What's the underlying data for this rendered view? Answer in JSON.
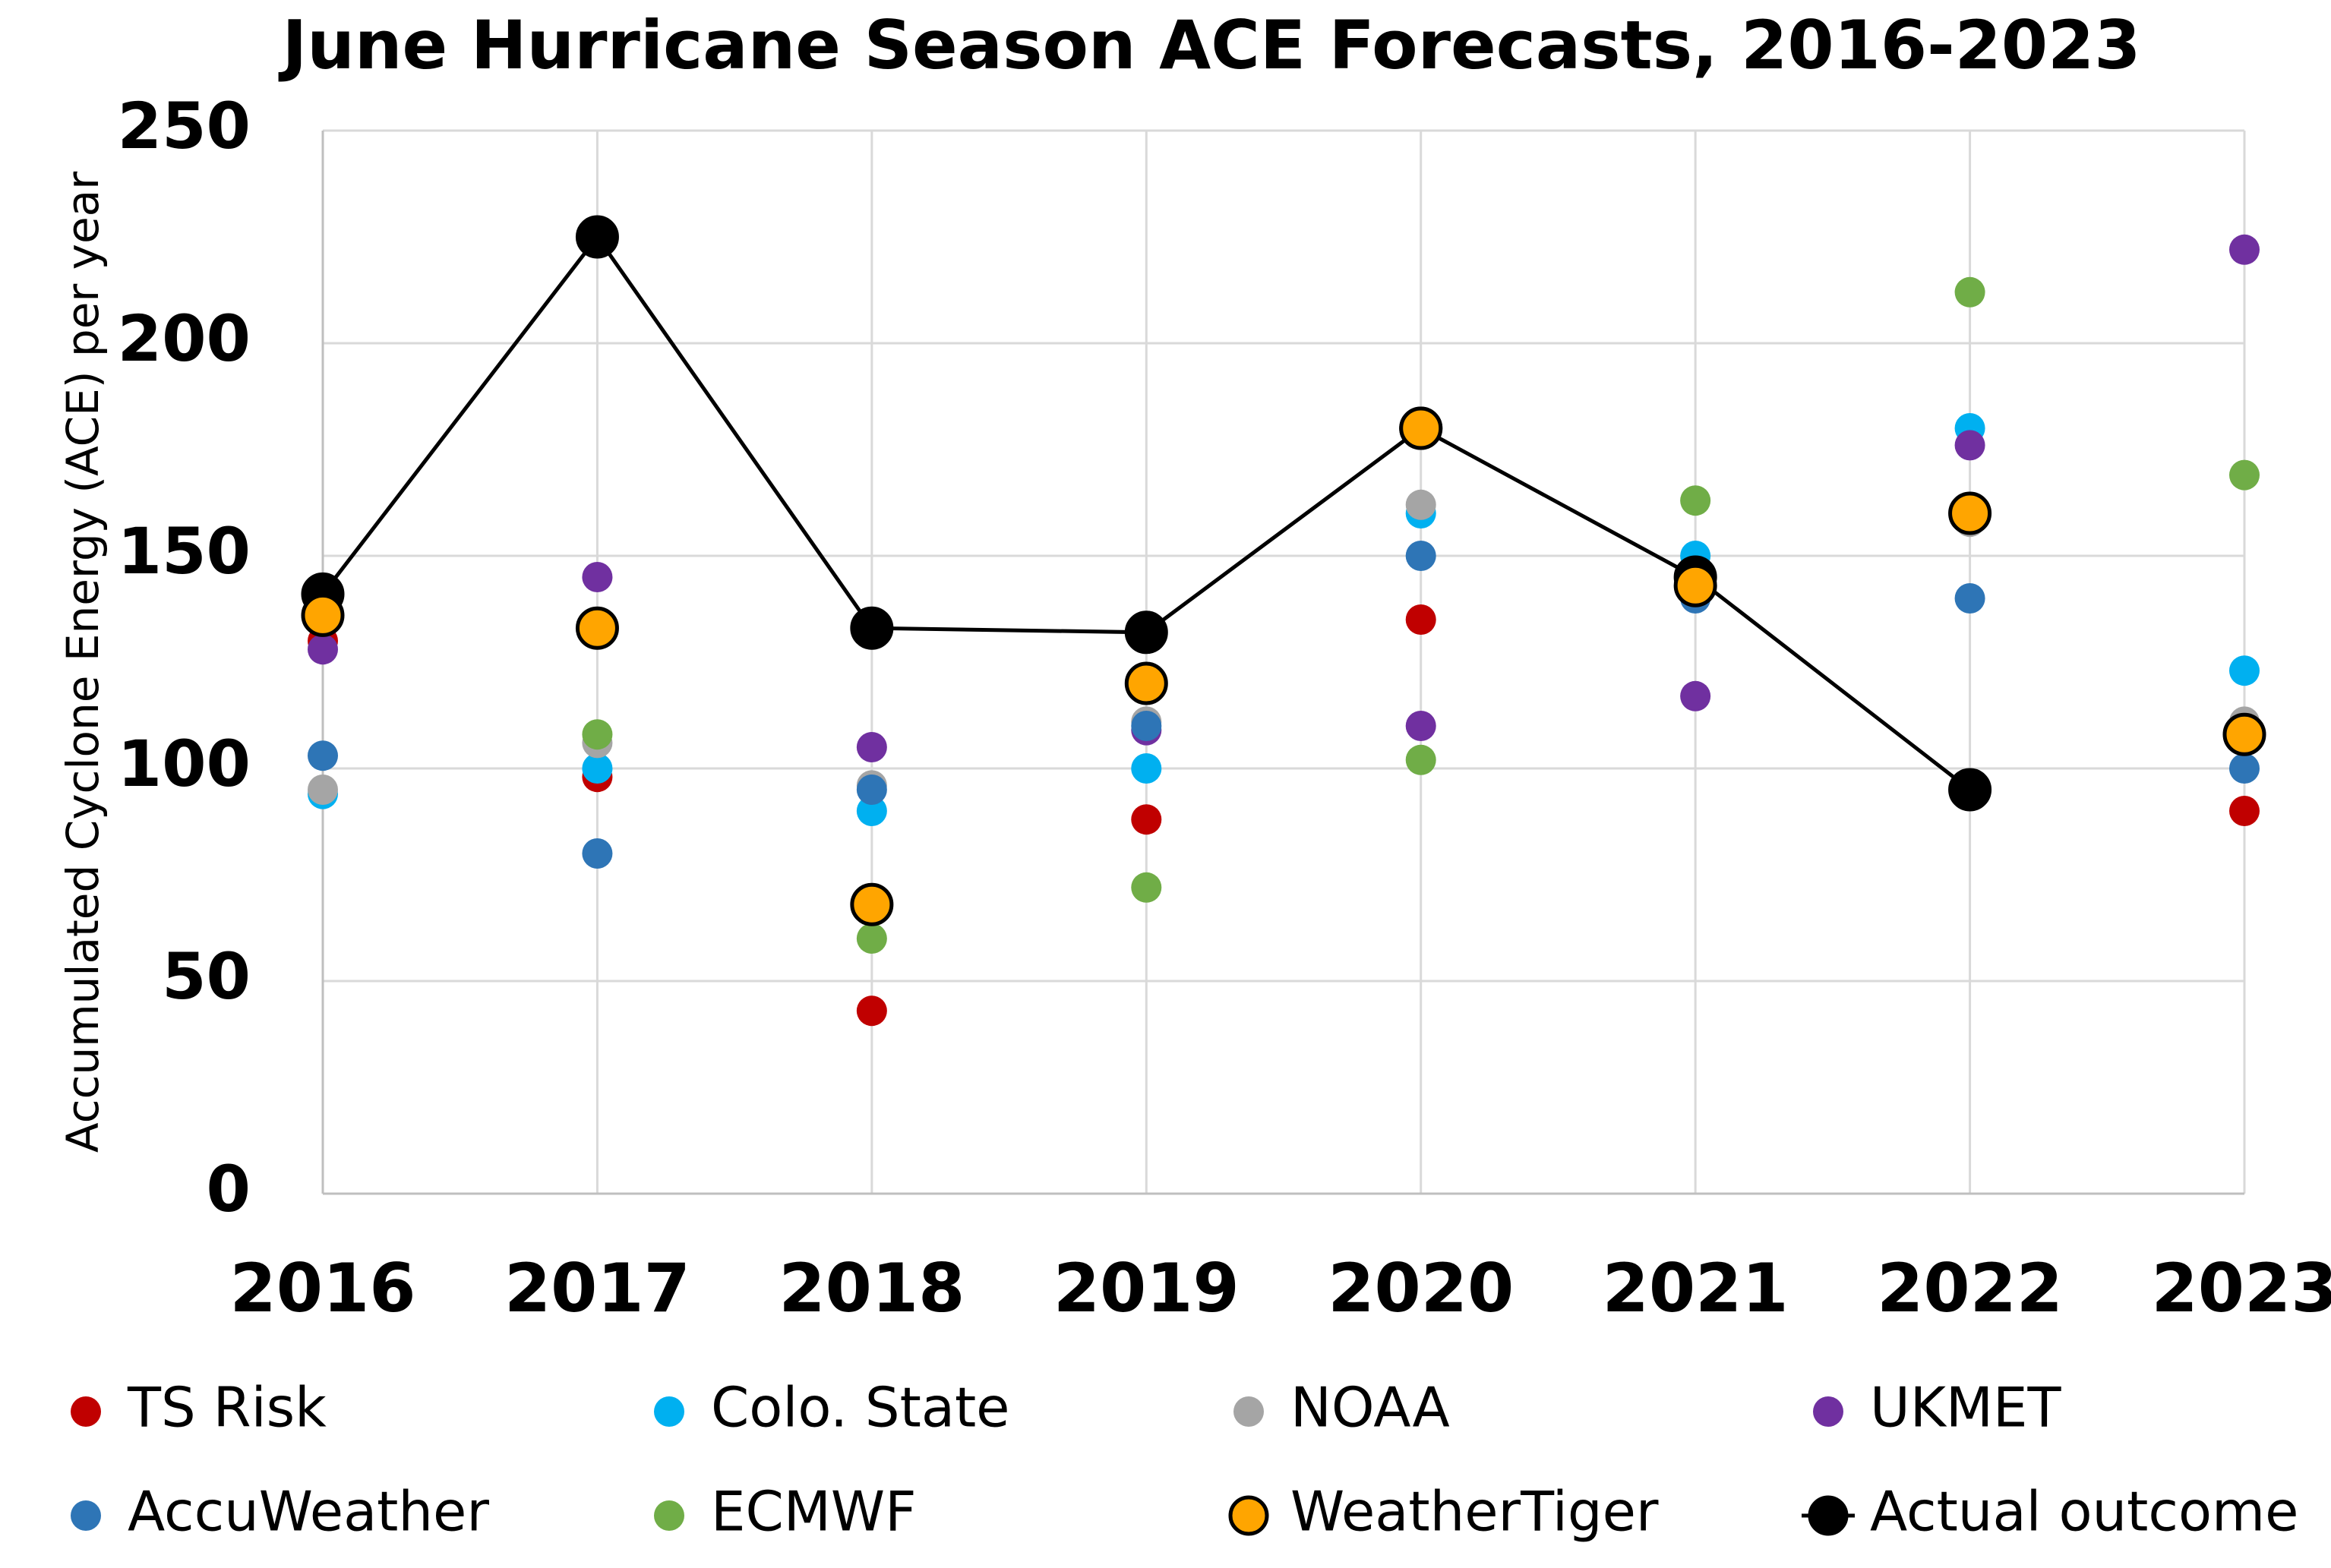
{
  "chart_data": {
    "type": "scatter",
    "title": "June Hurricane Season ACE Forecasts, 2016-2023",
    "y_label": "Accumulated Cyclone Energy (ACE) per year",
    "categories": [
      "2016",
      "2017",
      "2018",
      "2019",
      "2020",
      "2021",
      "2022",
      "2023"
    ],
    "ylim": [
      0,
      250
    ],
    "yticks": [
      0,
      50,
      100,
      150,
      200,
      250
    ],
    "grid": true,
    "series": [
      {
        "name": "TS Risk",
        "color": "#c00000",
        "values": [
          130,
          98,
          43,
          88,
          135,
          145,
          null,
          90
        ]
      },
      {
        "name": "Colo. State",
        "color": "#00b0f0",
        "values": [
          94,
          100,
          90,
          100,
          160,
          150,
          180,
          123
        ]
      },
      {
        "name": "NOAA",
        "color": "#a5a5a5",
        "values": [
          95,
          106,
          96,
          111,
          162,
          145,
          158,
          111
        ]
      },
      {
        "name": "UKMET",
        "color": "#7030a0",
        "values": [
          128,
          145,
          105,
          109,
          110,
          117,
          176,
          222
        ]
      },
      {
        "name": "AccuWeather",
        "color": "#2e75b6",
        "values": [
          103,
          80,
          95,
          110,
          150,
          140,
          140,
          100
        ]
      },
      {
        "name": "ECMWF",
        "color": "#70ad47",
        "values": [
          null,
          108,
          60,
          72,
          102,
          163,
          212,
          169
        ]
      },
      {
        "name": "WeatherTiger",
        "color": "#ffa500",
        "marker_edge": "#000000",
        "values": [
          136,
          133,
          68,
          120,
          180,
          143,
          160,
          108
        ]
      },
      {
        "name": "Actual outcome",
        "color": "#000000",
        "marker_edge": "#000000",
        "line": true,
        "values": [
          141,
          225,
          133,
          132,
          180,
          145,
          95,
          null
        ]
      }
    ]
  }
}
